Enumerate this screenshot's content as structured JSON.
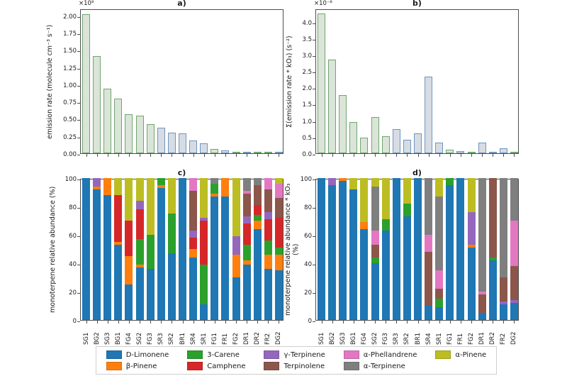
{
  "chart_data": [
    {
      "id": "a",
      "type": "bar",
      "title": "a)",
      "offset_text": "×10⁸",
      "ylabel": "emission rate (molecule cm⁻³ s⁻¹)",
      "ylim": [
        0,
        2.1
      ],
      "grid": false,
      "yticks": [
        "0.00",
        "0.25",
        "0.50",
        "0.75",
        "1.00",
        "1.25",
        "1.50",
        "1.75",
        "2.00"
      ],
      "values": [
        2.02,
        1.41,
        0.94,
        0.79,
        0.57,
        0.55,
        0.42,
        0.37,
        0.3,
        0.29,
        0.19,
        0.14,
        0.06,
        0.04,
        0.02,
        0.015,
        0.015,
        0.015,
        0.008
      ],
      "bar_styles": [
        "green",
        "green",
        "green",
        "green",
        "green",
        "green",
        "green",
        "blue",
        "blue",
        "blue",
        "blue",
        "blue",
        "green",
        "blue",
        "green",
        "blue",
        "green",
        "green",
        "blue"
      ]
    },
    {
      "id": "b",
      "type": "bar",
      "title": "b)",
      "offset_text": "×10⁻⁸",
      "ylabel": "Σ(emission rate * kO₃) (s⁻²)",
      "ylim": [
        0,
        4.4
      ],
      "grid": false,
      "yticks": [
        "0.0",
        "0.5",
        "1.0",
        "1.5",
        "2.0",
        "2.5",
        "3.0",
        "3.5",
        "4.0"
      ],
      "values": [
        4.25,
        2.85,
        1.77,
        0.96,
        0.48,
        1.1,
        0.52,
        0.74,
        0.41,
        0.61,
        2.33,
        0.32,
        0.11,
        0.06,
        0.03,
        0.33,
        0.04,
        0.15,
        0.03
      ],
      "bar_styles": [
        "green",
        "green",
        "green",
        "green",
        "green",
        "green",
        "green",
        "blue",
        "blue",
        "blue",
        "blue",
        "blue",
        "green",
        "blue",
        "green",
        "blue",
        "blue",
        "blue",
        "green"
      ]
    },
    {
      "id": "c",
      "type": "stacked_bar",
      "title": "c)",
      "ylabel": "monoterpene relative abundance (%)",
      "ylim": [
        0,
        100
      ],
      "grid": false,
      "yticks": [
        "0",
        "20",
        "40",
        "60",
        "80",
        "100"
      ],
      "categories": [
        "SG1",
        "BG2",
        "SG3",
        "BG1",
        "FG4",
        "SG2",
        "FG3",
        "SR3",
        "SR2",
        "BR1",
        "SR4",
        "SR1",
        "FG1",
        "FR1",
        "FG2",
        "DR1",
        "DR2",
        "FR2",
        "DG2"
      ],
      "series": [
        {
          "name": "D-Limonene",
          "values": [
            100,
            92,
            88,
            53,
            25,
            37,
            36,
            93,
            47,
            100,
            44,
            11,
            87,
            87,
            30,
            39,
            64,
            36,
            35
          ]
        },
        {
          "name": "β-Pinene",
          "values": [
            0,
            2,
            12,
            2,
            20,
            2,
            0,
            2,
            0,
            0,
            6,
            0,
            2,
            13,
            16,
            3,
            6,
            10,
            11
          ]
        },
        {
          "name": "3-Carene",
          "values": [
            0,
            0,
            0,
            0,
            0,
            18,
            24,
            5,
            28,
            0,
            0,
            28,
            7,
            0,
            0,
            11,
            4,
            10,
            5
          ]
        },
        {
          "name": "Camphene",
          "values": [
            0,
            0,
            0,
            33,
            25,
            21,
            0,
            0,
            0,
            0,
            8,
            31,
            0,
            0,
            0,
            15,
            7,
            15,
            21
          ]
        },
        {
          "name": "γ-Terpinene",
          "values": [
            0,
            6,
            0,
            0,
            0,
            6,
            0,
            0,
            0,
            0,
            5,
            2,
            0,
            0,
            13,
            5,
            0,
            5,
            0
          ]
        },
        {
          "name": "Terpinolene",
          "values": [
            0,
            0,
            0,
            0,
            0,
            0,
            0,
            0,
            0,
            0,
            28,
            0,
            0,
            0,
            0,
            16,
            14,
            16,
            14
          ]
        },
        {
          "name": "α-Phellandrene",
          "values": [
            0,
            0,
            0,
            0,
            0,
            0,
            0,
            0,
            0,
            0,
            9,
            0,
            0,
            0,
            0,
            2,
            0,
            8,
            10
          ]
        },
        {
          "name": "α-Terpinene",
          "values": [
            0,
            0,
            0,
            0,
            0,
            0,
            0,
            0,
            0,
            0,
            0,
            0,
            4,
            0,
            0,
            9,
            5,
            0,
            0
          ]
        },
        {
          "name": "α-Pinene",
          "values": [
            0,
            0,
            0,
            12,
            30,
            16,
            40,
            0,
            25,
            0,
            0,
            28,
            0,
            0,
            41,
            0,
            0,
            0,
            4
          ]
        }
      ]
    },
    {
      "id": "d",
      "type": "stacked_bar",
      "title": "d)",
      "ylabel": "monoterpene relative abundance * kO₃ (%)",
      "ylim": [
        0,
        100
      ],
      "grid": false,
      "yticks": [
        "0",
        "20",
        "40",
        "60",
        "80",
        "100"
      ],
      "categories": [
        "SG1",
        "BG2",
        "SG3",
        "BG1",
        "FG4",
        "SG2",
        "FG3",
        "SR3",
        "SR2",
        "BR1",
        "SR4",
        "SR1",
        "FG1",
        "FR1",
        "FG2",
        "DR1",
        "DR2",
        "FR2",
        "DG2"
      ],
      "series": [
        {
          "name": "D-Limonene",
          "values": [
            100,
            95,
            98,
            92,
            64,
            40,
            63,
            100,
            73,
            100,
            10,
            9,
            95,
            100,
            51,
            5,
            42,
            11,
            12
          ]
        },
        {
          "name": "β-Pinene",
          "values": [
            0,
            0,
            2,
            0,
            5,
            0,
            0,
            0,
            0,
            0,
            0,
            0,
            0,
            0,
            2,
            0,
            0,
            0,
            0
          ]
        },
        {
          "name": "3-Carene",
          "values": [
            0,
            0,
            0,
            0,
            0,
            4,
            8,
            0,
            9,
            0,
            0,
            6,
            5,
            0,
            0,
            0,
            2,
            0,
            0
          ]
        },
        {
          "name": "Camphene",
          "values": [
            0,
            0,
            0,
            0,
            0,
            0,
            0,
            0,
            0,
            0,
            0,
            0,
            0,
            0,
            0,
            0,
            0,
            0,
            0
          ]
        },
        {
          "name": "γ-Terpinene",
          "values": [
            0,
            5,
            0,
            0,
            0,
            0,
            0,
            0,
            0,
            0,
            0,
            0,
            0,
            0,
            23,
            0,
            0,
            2,
            2
          ]
        },
        {
          "name": "Terpinolene",
          "values": [
            0,
            0,
            0,
            0,
            0,
            9,
            0,
            0,
            0,
            0,
            38,
            7,
            0,
            0,
            0,
            13,
            56,
            17,
            24
          ]
        },
        {
          "name": "α-Phellandrene",
          "values": [
            0,
            0,
            0,
            0,
            0,
            10,
            0,
            0,
            0,
            0,
            12,
            13,
            0,
            0,
            0,
            2,
            0,
            0,
            32
          ]
        },
        {
          "name": "α-Terpinene",
          "values": [
            0,
            0,
            0,
            0,
            0,
            31,
            0,
            0,
            0,
            0,
            40,
            52,
            0,
            0,
            0,
            80,
            0,
            70,
            30
          ]
        },
        {
          "name": "α-Pinene",
          "values": [
            0,
            0,
            0,
            8,
            31,
            6,
            29,
            0,
            18,
            0,
            0,
            13,
            0,
            0,
            24,
            0,
            0,
            0,
            0
          ]
        }
      ]
    }
  ],
  "legend": {
    "items": [
      {
        "label": "D-Limonene",
        "color": "#1f77b4"
      },
      {
        "label": "β-Pinene",
        "color": "#ff7f0e"
      },
      {
        "label": "3-Carene",
        "color": "#2ca02c"
      },
      {
        "label": "Camphene",
        "color": "#d62728"
      },
      {
        "label": "γ-Terpinene",
        "color": "#9467bd"
      },
      {
        "label": "Terpinolene",
        "color": "#8c564b"
      },
      {
        "label": "α-Phellandrene",
        "color": "#e377c2"
      },
      {
        "label": "α-Terpinene",
        "color": "#7f7f7f"
      },
      {
        "label": "α-Pinene",
        "color": "#bcbd22"
      }
    ]
  },
  "style": {
    "palette": {
      "D-Limonene": "#1f77b4",
      "β-Pinene": "#ff7f0e",
      "3-Carene": "#2ca02c",
      "Camphene": "#d62728",
      "γ-Terpinene": "#9467bd",
      "Terpinolene": "#8c564b",
      "α-Phellandrene": "#e377c2",
      "α-Terpinene": "#7f7f7f",
      "α-Pinene": "#bcbd22"
    },
    "bar_fill": {
      "green": "#dbe4d8",
      "blue": "#d6dce3"
    },
    "bar_edge": {
      "green": "#6fa66f",
      "blue": "#7195bd"
    },
    "frame_color": "#4d4d4d"
  }
}
